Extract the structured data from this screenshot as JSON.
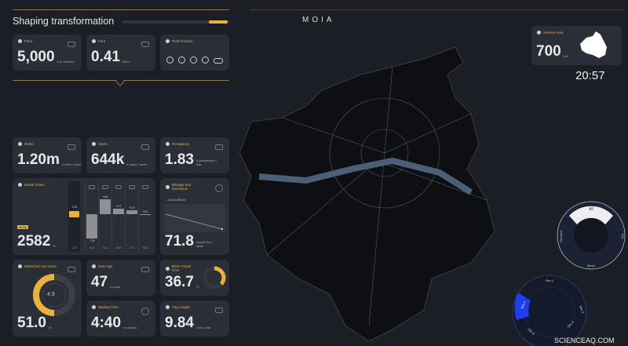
{
  "header": {
    "title": "Shaping transformation",
    "logo": "MOIA",
    "progress": 0.85
  },
  "top_cards": [
    {
      "label": "Fleet",
      "value": "5,000",
      "unit": "# of vehicles"
    },
    {
      "label": "Fare",
      "value": "0.41",
      "unit": "€/km"
    },
    {
      "label": "Push Factors",
      "icons": [
        "no-entry-icon",
        "parking-icon",
        "wheel-icon",
        "speed-limit-icon",
        "car-icon"
      ]
    }
  ],
  "kpis": [
    {
      "label": "Rides",
      "value": "1.20m",
      "unit": "# rides / week"
    },
    {
      "label": "Users",
      "value": "644k",
      "unit": "# users / week"
    },
    {
      "label": "Occupancy",
      "value": "1.83",
      "unit": "# passengers / ride"
    }
  ],
  "modal_share": {
    "label": "Modal Share",
    "badge": "MOIA",
    "value": "2582",
    "unit": "%",
    "moia_delta": "+2.6",
    "deltas": [
      "-7.8",
      "+4.8",
      "+1.7",
      "+1.2",
      "+0.1"
    ],
    "delta_values": [
      -7.8,
      4.8,
      1.7,
      1.2,
      0.1
    ],
    "bases": [
      "2.10",
      "31.9",
      "28.1",
      "16.5",
      "27.7",
      "15.5"
    ]
  },
  "mileage": {
    "label": "Mileage and Emissions",
    "legend": "-14,944,403 km",
    "value": "71.8",
    "unit": "vehicle km / week"
  },
  "car_users": {
    "label": "Motorized Car Users",
    "center": "4.9",
    "value": "51.0",
    "unit": "%",
    "fraction": 0.5
  },
  "user_age": {
    "label": "User Age",
    "value": "47",
    "unit": "# years"
  },
  "travel_time": {
    "label": "MOIA Travel Time",
    "value": "36.7",
    "unit": "%",
    "fraction": 0.367
  },
  "waiting": {
    "label": "Waiting Time",
    "value": "4:40",
    "unit": "# minutes"
  },
  "trip": {
    "label": "Trip Length",
    "value": "9.84",
    "unit": "# km / ride"
  },
  "service_area": {
    "label": "Service Area",
    "value": "700",
    "unit": "km²"
  },
  "clock": "20:57",
  "ring1": {
    "labels": [
      "All",
      "City",
      "Mean",
      "Operator"
    ]
  },
  "ring2": {
    "labels": [
      "Sim 1",
      "Sim 2",
      "Sim 3",
      "Sim 4",
      "Sim 5"
    ]
  },
  "watermark": "SCIENCEAQ.COM",
  "colors": {
    "accent": "#e8b33d",
    "blue": "#1f3cf0",
    "bg": "#1b1e24",
    "card": "#2a2e36"
  }
}
